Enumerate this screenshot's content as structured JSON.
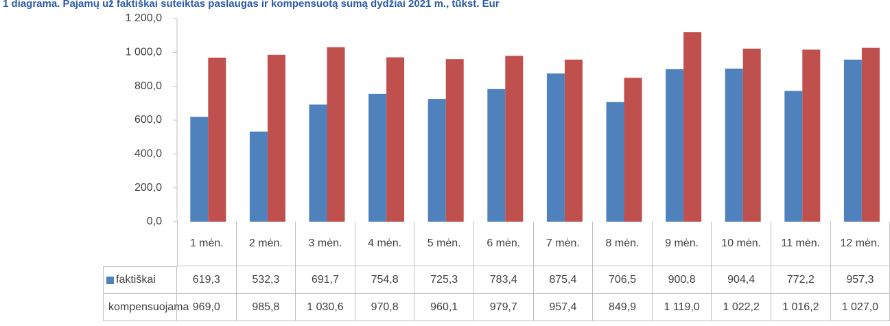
{
  "chart_data": {
    "type": "bar",
    "title": "1 diagrama. Pajamų už faktiškai suteiktas paslaugas ir kompensuotą sumą dydžiai 2021 m., tūkst. Eur",
    "categories": [
      "1 mėn.",
      "2 mėn.",
      "3 mėn.",
      "4 mėn.",
      "5 mėn.",
      "6 mėn.",
      "7 mėn.",
      "8 mėn.",
      "9 mėn.",
      "10 mėn.",
      "11 mėn.",
      "12 mėn."
    ],
    "series": [
      {
        "name": "faktiškai",
        "color": "#4f81bd",
        "values": [
          619.3,
          532.3,
          691.7,
          754.8,
          725.3,
          783.4,
          875.4,
          706.5,
          900.8,
          904.4,
          772.2,
          957.3
        ],
        "value_labels": [
          "619,3",
          "532,3",
          "691,7",
          "754,8",
          "725,3",
          "783,4",
          "875,4",
          "706,5",
          "900,8",
          "904,4",
          "772,2",
          "957,3"
        ]
      },
      {
        "name": "kompensuojama",
        "color": "#c0504d",
        "values": [
          969.0,
          985.8,
          1030.6,
          970.8,
          960.1,
          979.7,
          957.4,
          849.9,
          1119.0,
          1022.2,
          1016.2,
          1027.0
        ],
        "value_labels": [
          "969,0",
          "985,8",
          "1 030,6",
          "970,8",
          "960,1",
          "979,7",
          "957,4",
          "849,9",
          "1 119,0",
          "1 022,2",
          "1 016,2",
          "1 027,0"
        ]
      }
    ],
    "ylim": [
      0,
      1200
    ],
    "yticks": [
      {
        "value": 0,
        "label": "0,0"
      },
      {
        "value": 200,
        "label": "200,0"
      },
      {
        "value": 400,
        "label": "400,0"
      },
      {
        "value": 600,
        "label": "600,0"
      },
      {
        "value": 800,
        "label": "800,0"
      },
      {
        "value": 1000,
        "label": "1 000,0"
      },
      {
        "value": 1200,
        "label": "1 200,0"
      }
    ],
    "grid": false
  }
}
